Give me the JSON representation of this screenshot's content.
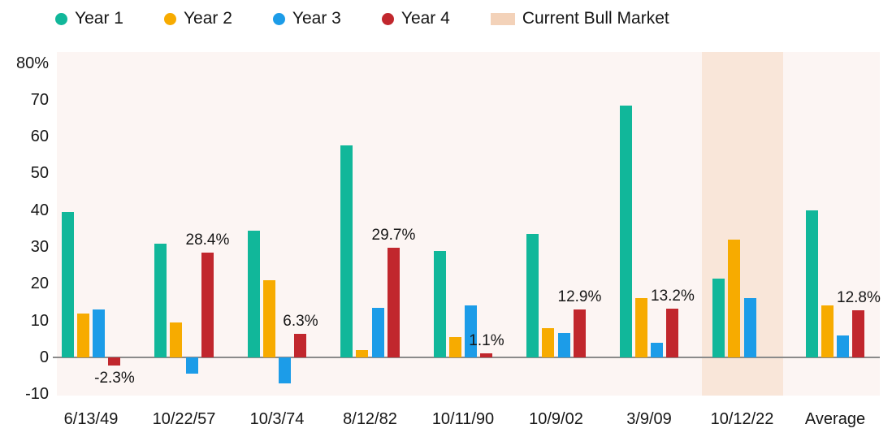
{
  "legend": {
    "items": [
      {
        "label": "Year 1",
        "color": "#11B79A",
        "shape": "dot"
      },
      {
        "label": "Year 2",
        "color": "#F7AB00",
        "shape": "dot"
      },
      {
        "label": "Year 3",
        "color": "#1C9CE8",
        "shape": "dot"
      },
      {
        "label": "Year 4",
        "color": "#C1272D",
        "shape": "dot"
      },
      {
        "label": "Current Bull Market",
        "color": "#F3D2B9",
        "shape": "swatch"
      }
    ]
  },
  "chart_data": {
    "type": "bar",
    "title": "",
    "categories": [
      "6/13/49",
      "10/22/57",
      "10/3/74",
      "8/12/82",
      "10/11/90",
      "10/9/02",
      "3/9/09",
      "10/12/22",
      "Average"
    ],
    "series": [
      {
        "name": "Year 1",
        "color": "#11B79A",
        "values": [
          39.5,
          31,
          34.5,
          57.5,
          29,
          33.5,
          68.5,
          21.5,
          40
        ]
      },
      {
        "name": "Year 2",
        "color": "#F7AB00",
        "values": [
          12,
          9.5,
          21,
          2,
          5.5,
          8,
          16,
          32,
          14
        ]
      },
      {
        "name": "Year 3",
        "color": "#1C9CE8",
        "values": [
          13,
          -4.5,
          -7,
          13.5,
          14,
          6.5,
          4,
          16,
          6
        ]
      },
      {
        "name": "Year 4",
        "color": "#C1272D",
        "values": [
          -2.3,
          28.4,
          6.3,
          29.7,
          1.1,
          12.9,
          13.2,
          null,
          12.8
        ]
      }
    ],
    "annotations": [
      {
        "category_index": 0,
        "text": "-2.3%"
      },
      {
        "category_index": 1,
        "text": "28.4%"
      },
      {
        "category_index": 2,
        "text": "6.3%"
      },
      {
        "category_index": 3,
        "text": "29.7%"
      },
      {
        "category_index": 4,
        "text": "1.1%"
      },
      {
        "category_index": 5,
        "text": "12.9%"
      },
      {
        "category_index": 6,
        "text": "13.2%"
      },
      {
        "category_index": 8,
        "text": "12.8%"
      }
    ],
    "yticks": [
      {
        "value": 80,
        "label": "80%"
      },
      {
        "value": 70,
        "label": "70"
      },
      {
        "value": 60,
        "label": "60"
      },
      {
        "value": 50,
        "label": "50"
      },
      {
        "value": 40,
        "label": "40"
      },
      {
        "value": 30,
        "label": "30"
      },
      {
        "value": 20,
        "label": "20"
      },
      {
        "value": 10,
        "label": "10"
      },
      {
        "value": 0,
        "label": "0"
      },
      {
        "value": -10,
        "label": "-10"
      }
    ],
    "ylim": [
      -10.4,
      83
    ],
    "grid": false,
    "legend_position": "top",
    "xlabel": "",
    "ylabel": "",
    "highlight": {
      "category": "10/12/22",
      "category_index": 7,
      "label": "Current Bull Market",
      "color": "#F9E6D9"
    },
    "plot_background": "#FCF5F3",
    "axis_line_color": "#8A8A8A"
  }
}
